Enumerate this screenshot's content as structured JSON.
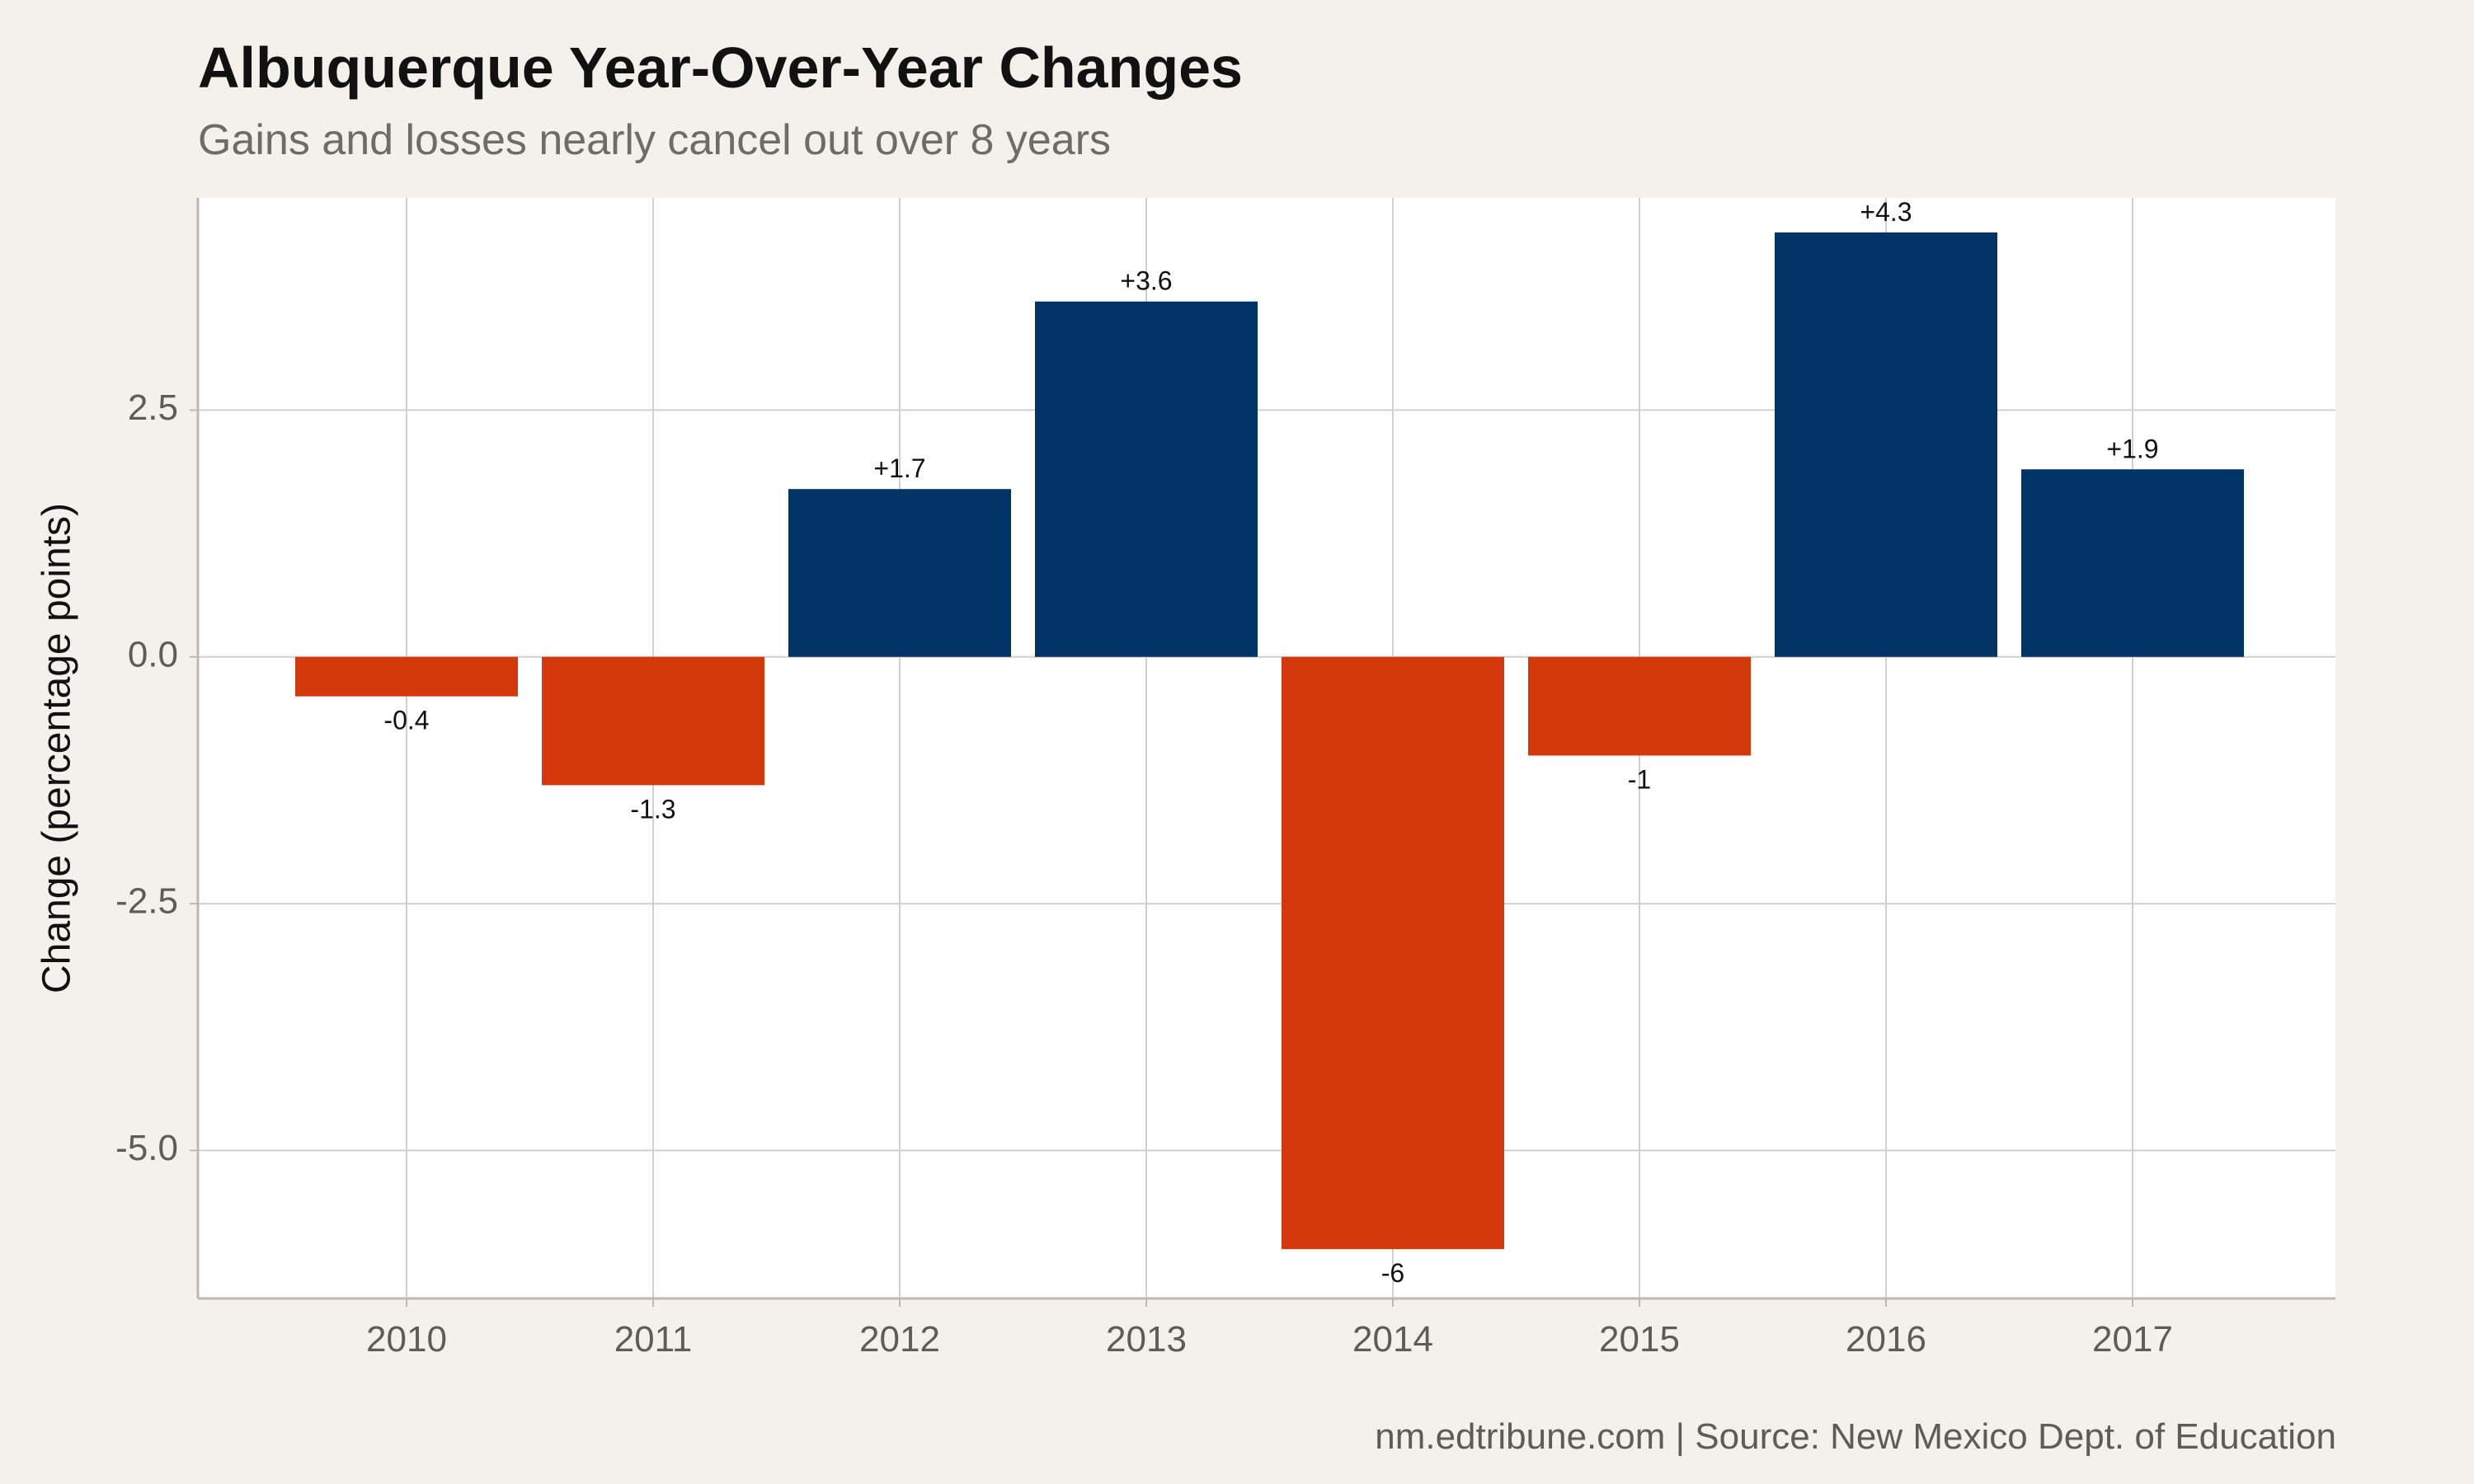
{
  "chart_data": {
    "type": "bar",
    "title": "Albuquerque Year-Over-Year Changes",
    "subtitle": "Gains and losses nearly cancel out over 8 years",
    "caption": "nm.edtribune.com | Source: New Mexico Dept. of Education",
    "xlabel": "",
    "ylabel": "Change (percentage points)",
    "categories": [
      "2010",
      "2011",
      "2012",
      "2013",
      "2014",
      "2015",
      "2016",
      "2017"
    ],
    "values": [
      -0.4,
      -1.3,
      1.7,
      3.6,
      -6,
      -1,
      4.3,
      1.9
    ],
    "data_labels": [
      "-0.4",
      "-1.3",
      "+1.7",
      "+3.6",
      "-6",
      "-1",
      "+4.3",
      "+1.9"
    ],
    "ylim": [
      -6.5,
      4.65
    ],
    "yticks": [
      -5.0,
      -2.5,
      0.0,
      2.5
    ],
    "ytick_labels": [
      "-5.0",
      "-2.5",
      "0.0",
      "2.5"
    ],
    "grid": true,
    "legend": "none",
    "colors": {
      "positive": "#003366",
      "negative": "#d4380d",
      "panel": "#ffffff",
      "background": "#f4f1ec",
      "grid": "#d3d0cb",
      "axis": "#bdb9b2"
    }
  }
}
